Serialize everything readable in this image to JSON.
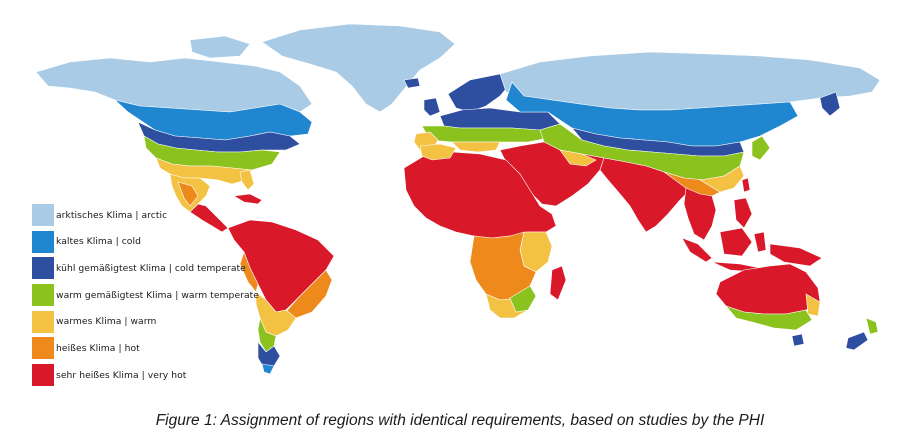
{
  "colors": {
    "arctic": "#a9cbe6",
    "cold": "#1f86cf",
    "cold_temperate": "#2e4ea0",
    "warm_temperate": "#8cc21d",
    "warm": "#f4c243",
    "hot": "#ee8a1c",
    "very_hot": "#d9192a",
    "water": "#ffffff"
  },
  "legend": {
    "items": [
      {
        "key": "arctic",
        "label": "arktisches Klima | arctic",
        "color": "#a9cbe6"
      },
      {
        "key": "cold",
        "label": "kaltes Klima | cold",
        "color": "#1f86cf"
      },
      {
        "key": "cold_temperate",
        "label": "kühl gemäßigtest Klima | cold temperate",
        "color": "#2e4ea0"
      },
      {
        "key": "warm_temperate",
        "label": "warm gemäßigtest Klima | warm temperate",
        "color": "#8cc21d"
      },
      {
        "key": "warm",
        "label": "warmes Klima | warm",
        "color": "#f4c243"
      },
      {
        "key": "hot",
        "label": "heißes Klima | hot",
        "color": "#ee8a1c"
      },
      {
        "key": "very_hot",
        "label": "sehr heißes Klima | very hot",
        "color": "#d9192a"
      }
    ]
  },
  "caption": "Figure 1: Assignment of regions with identical requirements, based on studies by the PHI"
}
